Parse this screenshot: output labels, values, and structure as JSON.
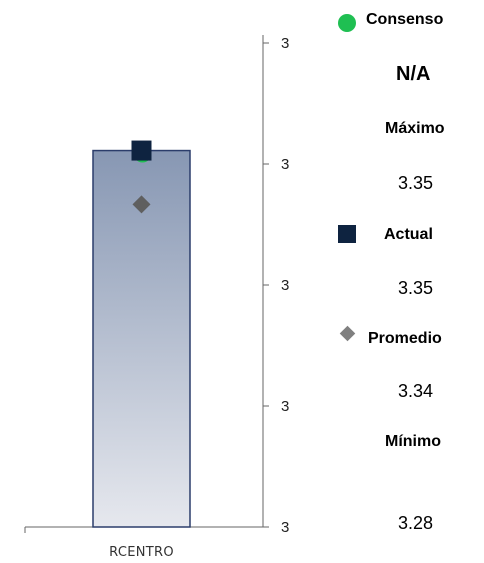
{
  "chart_data": {
    "type": "bar",
    "categories": [
      "RCENTRO"
    ],
    "ylim": [
      3.28,
      3.37
    ],
    "y_tick_labels": [
      "3",
      "3",
      "3",
      "3",
      "3"
    ],
    "range_bar": {
      "min": 3.28,
      "max": 3.35
    },
    "markers": {
      "consenso": null,
      "actual": 3.35,
      "promedio": 3.34
    },
    "colors": {
      "bar_top": "#8797b3",
      "bar_bottom": "#e6e8ee",
      "bar_border": "#2b3d6b",
      "consenso": "#1fbf52",
      "actual": "#0e2340",
      "promedio": "#5f5f5f"
    }
  },
  "legend": {
    "consenso": {
      "label": "Consenso",
      "value": "N/A",
      "icon": "green-circle"
    },
    "maximo": {
      "label": "Máximo",
      "value": "3.35"
    },
    "actual": {
      "label": "Actual",
      "value": "3.35",
      "icon": "navy-square"
    },
    "promedio": {
      "label": "Promedio",
      "value": "3.34",
      "icon": "gray-diamond"
    },
    "minimo": {
      "label": "Mínimo",
      "value": "3.28"
    }
  }
}
